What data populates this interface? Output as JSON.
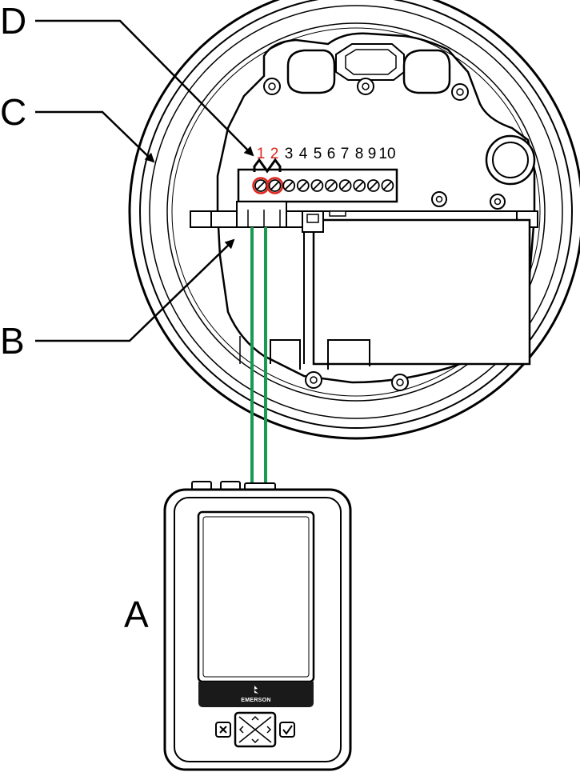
{
  "callouts": {
    "a": "A",
    "b": "B",
    "c": "C",
    "d": "D"
  },
  "terminals": [
    "1",
    "2",
    "3",
    "4",
    "5",
    "6",
    "7",
    "8",
    "9",
    "10"
  ],
  "device": {
    "brand": "EMERSON"
  },
  "colors": {
    "lead_wire": "#1a9a50",
    "highlight": "#e0231b",
    "outline": "#000000",
    "screen_bar": "#1a1a1a"
  },
  "icons": {
    "cancel": "cancel-x-icon",
    "navigate": "four-way-nav-icon",
    "confirm": "check-icon",
    "logo": "emerson-logo-icon"
  }
}
